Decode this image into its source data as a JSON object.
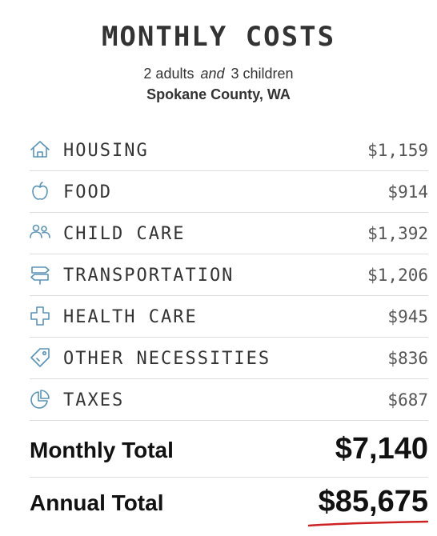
{
  "header": {
    "title": "MONTHLY COSTS",
    "adults": "2 adults",
    "and": "and",
    "children": "3 children",
    "location": "Spokane County, WA"
  },
  "colors": {
    "icon": "#5b93b5",
    "text": "#333333",
    "underline": "#cc2222"
  },
  "costs": [
    {
      "icon": "house-icon",
      "label": "HOUSING",
      "value": "$1,159"
    },
    {
      "icon": "apple-icon",
      "label": "FOOD",
      "value": "$914"
    },
    {
      "icon": "people-icon",
      "label": "CHILD CARE",
      "value": "$1,392"
    },
    {
      "icon": "signpost-icon",
      "label": "TRANSPORTATION",
      "value": "$1,206"
    },
    {
      "icon": "medical-cross-icon",
      "label": "HEALTH CARE",
      "value": "$945"
    },
    {
      "icon": "tag-icon",
      "label": "OTHER NECESSITIES",
      "value": "$836"
    },
    {
      "icon": "pie-chart-icon",
      "label": "TAXES",
      "value": "$687"
    }
  ],
  "totals": {
    "monthly_label": "Monthly Total",
    "monthly_value": "$7,140",
    "annual_label": "Annual Total",
    "annual_value": "$85,675"
  }
}
